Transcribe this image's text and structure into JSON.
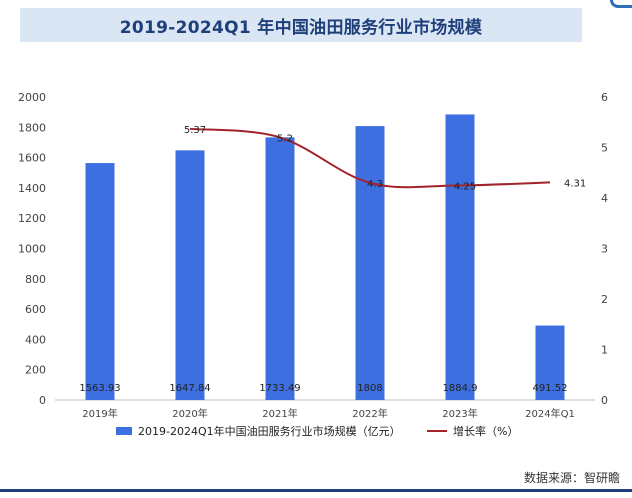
{
  "title": "2019-2024Q1 年中国油田服务行业市场规模",
  "source": "数据来源：智研瞻",
  "chart_data": {
    "type": "bar",
    "categories": [
      "2019年",
      "2020年",
      "2021年",
      "2022年",
      "2023年",
      "2024年Q1"
    ],
    "series": [
      {
        "name": "2019-2024Q1年中国油田服务行业市场规模（亿元）",
        "type": "bar",
        "axis": "left",
        "values": [
          1563.93,
          1647.84,
          1733.49,
          1808,
          1884.9,
          491.52
        ],
        "labels": [
          "1563.93",
          "1647.84",
          "1733.49",
          "1808",
          "1884.9",
          "491.52"
        ],
        "color": "#3d6fe0"
      },
      {
        "name": "增长率（%）",
        "type": "line",
        "axis": "right",
        "values": [
          null,
          5.37,
          5.2,
          4.3,
          4.25,
          4.31
        ],
        "labels": [
          "",
          "5.37",
          "5.2",
          "4.3",
          "4.25",
          "4.31"
        ],
        "color": "#a3232a"
      }
    ],
    "y_left": {
      "min": 0,
      "max": 2000,
      "ticks": [
        "0",
        "200",
        "400",
        "600",
        "800",
        "1000",
        "1200",
        "1400",
        "1600",
        "1800",
        "2000"
      ]
    },
    "y_right": {
      "min": 0,
      "max": 6,
      "ticks": [
        "0",
        "1",
        "2",
        "3",
        "4",
        "5",
        "6"
      ]
    },
    "grid": false,
    "legend_position": "bottom"
  }
}
